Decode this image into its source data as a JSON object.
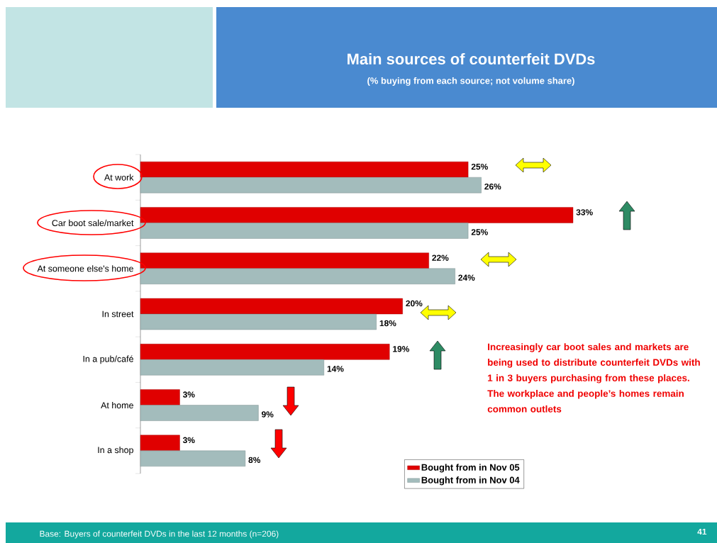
{
  "chart_data": {
    "type": "bar",
    "orientation": "horizontal",
    "title": "Main sources of counterfeit DVDs",
    "subtitle": "(%  buying from each source; not volume share)",
    "categories": [
      "At work",
      "Car boot sale/market",
      "At someone else's home",
      "In street",
      "In a pub/café",
      "At home",
      "In a shop"
    ],
    "series": [
      {
        "name": "Bought from in Nov 05",
        "color": "#e00000",
        "values": [
          25,
          33,
          22,
          20,
          19,
          3,
          3
        ],
        "value_labels": [
          "25%",
          "33%",
          "22%",
          "20%",
          "19%",
          "3%",
          "3%"
        ]
      },
      {
        "name": "Bought from in Nov 04",
        "color": "#a3bcbc",
        "values": [
          26,
          25,
          24,
          18,
          14,
          9,
          8
        ],
        "value_labels": [
          "26%",
          "25%",
          "24%",
          "18%",
          "14%",
          "9%",
          "8%"
        ]
      }
    ],
    "tick_labels": "y",
    "legend": "bottom right",
    "annotations": [
      "Increasingly car boot sales and markets are being used to distribute counterfeit DVDs with 1 in 3 buyers purchasing from these places. The workplace and people’s homes remain common outlets",
      "Base: Buyers of counterfeit DVDs in the last 12 months (n=206)",
      "41"
    ]
  }
}
